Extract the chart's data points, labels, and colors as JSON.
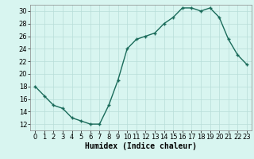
{
  "x": [
    0,
    1,
    2,
    3,
    4,
    5,
    6,
    7,
    8,
    9,
    10,
    11,
    12,
    13,
    14,
    15,
    16,
    17,
    18,
    19,
    20,
    21,
    22,
    23
  ],
  "y": [
    18,
    16.5,
    15,
    14.5,
    13,
    12.5,
    12,
    12,
    15,
    19,
    24,
    25.5,
    26,
    26.5,
    28,
    29,
    30.5,
    30.5,
    30,
    30.5,
    29,
    25.5,
    23,
    21.5
  ],
  "line_color": "#1a6b5a",
  "marker": "+",
  "marker_size": 3,
  "bg_color": "#d8f5f0",
  "grid_color": "#b8ddd8",
  "xlabel": "Humidex (Indice chaleur)",
  "xlabel_fontsize": 7,
  "tick_fontsize": 6,
  "xlim": [
    -0.5,
    23.5
  ],
  "ylim": [
    11,
    31
  ],
  "yticks": [
    12,
    14,
    16,
    18,
    20,
    22,
    24,
    26,
    28,
    30
  ],
  "xticks": [
    0,
    1,
    2,
    3,
    4,
    5,
    6,
    7,
    8,
    9,
    10,
    11,
    12,
    13,
    14,
    15,
    16,
    17,
    18,
    19,
    20,
    21,
    22,
    23
  ],
  "line_width": 1.0
}
